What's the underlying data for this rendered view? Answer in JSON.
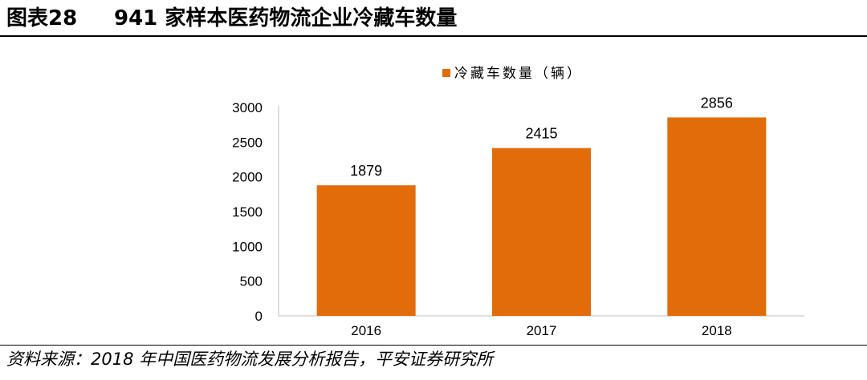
{
  "figure": {
    "label": "图表28",
    "title": "941 家样本医药物流企业冷藏车数量"
  },
  "source": "资料来源：2018 年中国医药物流发展分析报告，平安证券研究所",
  "colors": {
    "bar": "#E36C0A",
    "axis": "#bfbfbf",
    "text": "#000000"
  },
  "chart_data": {
    "type": "bar",
    "categories": [
      "2016",
      "2017",
      "2018"
    ],
    "series": [
      {
        "name": "冷藏车数量（辆）",
        "values": [
          1879,
          2415,
          2856
        ]
      }
    ],
    "data_labels": [
      "1879",
      "2415",
      "2856"
    ],
    "ylim": [
      0,
      3000
    ],
    "yticks": [
      "0",
      "500",
      "1000",
      "1500",
      "2000",
      "2500",
      "3000"
    ],
    "legend_position": "top",
    "grid": false
  }
}
